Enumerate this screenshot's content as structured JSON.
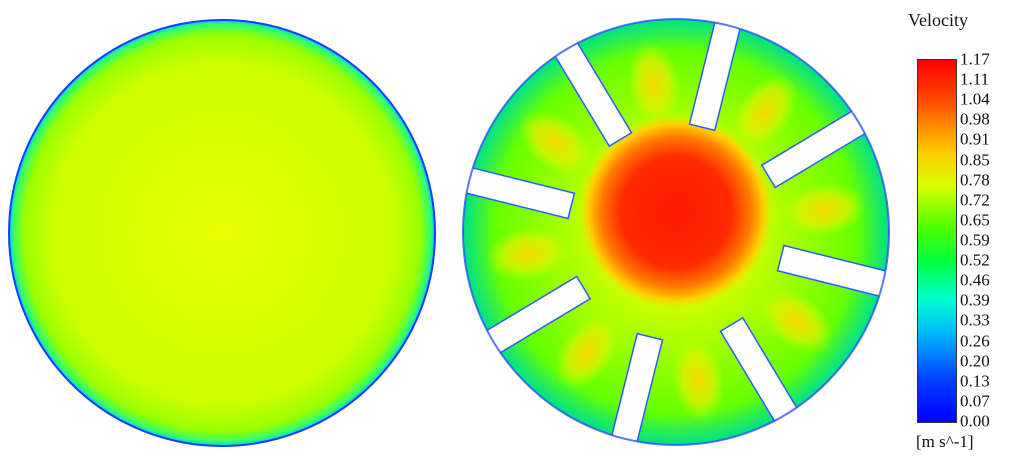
{
  "legend": {
    "title": "Velocity",
    "unit": "[m s^-1]",
    "ticks": [
      "1.17",
      "1.11",
      "1.04",
      "0.98",
      "0.91",
      "0.85",
      "0.78",
      "0.72",
      "0.65",
      "0.59",
      "0.52",
      "0.46",
      "0.39",
      "0.33",
      "0.26",
      "0.20",
      "0.13",
      "0.07",
      "0.00"
    ],
    "colormap": [
      "#ff0000",
      "#ff6a00",
      "#ffd200",
      "#e6ff00",
      "#7dff00",
      "#00ff33",
      "#00ffd9",
      "#00a8ff",
      "#0028ff",
      "#0000ff"
    ]
  },
  "panels": [
    {
      "name": "plain-disk",
      "description": "uniform velocity field"
    },
    {
      "name": "slotted-disk",
      "slots": 8
    }
  ]
}
